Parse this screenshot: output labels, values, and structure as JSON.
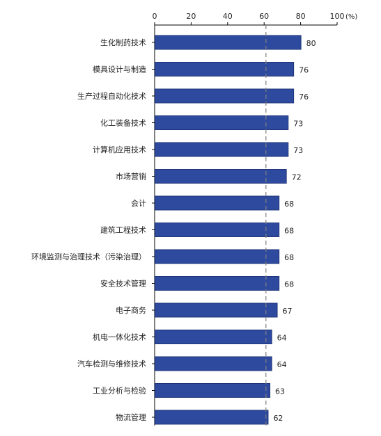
{
  "chart_data": {
    "type": "bar",
    "orientation": "horizontal",
    "categories": [
      "生化制药技术",
      "模具设计与制造",
      "生产过程自动化技术",
      "化工装备技术",
      "计算机应用技术",
      "市场营销",
      "会计",
      "建筑工程技术",
      "环境监测与治理技术（污染治理）",
      "安全技术管理",
      "电子商务",
      "机电一体化技术",
      "汽车检测与维修技术",
      "工业分析与检验",
      "物流管理"
    ],
    "values": [
      80,
      76,
      76,
      73,
      73,
      72,
      68,
      68,
      68,
      68,
      67,
      64,
      64,
      63,
      62
    ],
    "x_ticks": [
      "0",
      "20",
      "40",
      "60",
      "80",
      "100"
    ],
    "x_unit": "(%)",
    "xlim": [
      0,
      100
    ],
    "reference_line": 61,
    "bar_color": "#2E4A9E",
    "bar_edge_color": "#1F3578",
    "reference_line_color": "#7F7F7F",
    "axis_position": "top",
    "grid": false,
    "legend": "none"
  }
}
